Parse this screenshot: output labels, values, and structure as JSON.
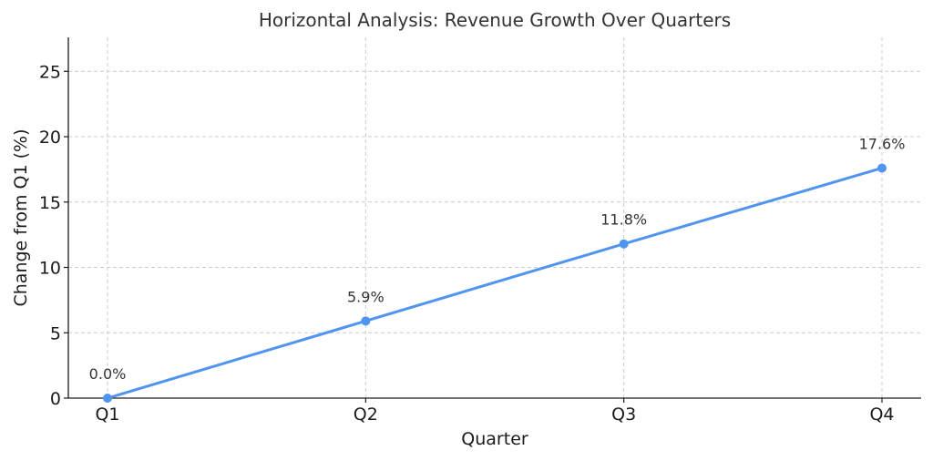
{
  "chart_data": {
    "type": "line",
    "title": "Horizontal Analysis: Revenue Growth Over Quarters",
    "xlabel": "Quarter",
    "ylabel": "Change from Q1 (%)",
    "categories": [
      "Q1",
      "Q2",
      "Q3",
      "Q4"
    ],
    "series": [
      {
        "values": [
          0.0,
          5.9,
          11.8,
          17.6
        ],
        "data_labels": [
          "0.0%",
          "5.9%",
          "11.8%",
          "17.6%"
        ]
      }
    ],
    "ylim": [
      0,
      27.6
    ],
    "yticks": [
      0,
      5,
      10,
      15,
      20,
      25
    ],
    "grid": true,
    "legend": "none",
    "line_color": "#4f94ef"
  }
}
